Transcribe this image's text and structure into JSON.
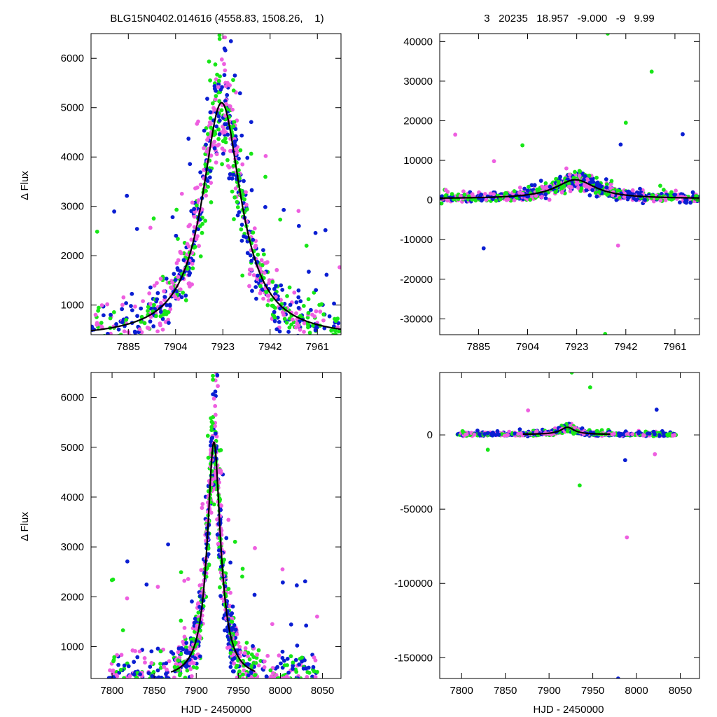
{
  "header": {
    "left_title": "BLG15N0402.014616 (4558.83, 1508.26,    1)",
    "right_title": "3   20235   18.957   -9.000   -9   9.99"
  },
  "colors": {
    "series_1": "#0a1ed2",
    "series_2": "#ee5fe0",
    "series_3": "#17e617",
    "model": "#000000"
  },
  "chart_data": [
    {
      "id": "top-left",
      "type": "scatter",
      "title": "",
      "xlabel": "",
      "ylabel": "Δ Flux",
      "xlim": [
        7870.0,
        7970.5
      ],
      "ylim": [
        400,
        6500
      ],
      "xticks": [
        7885,
        7904,
        7923,
        7942,
        7961
      ],
      "yticks": [
        1000,
        2000,
        3000,
        4000,
        5000,
        6000
      ],
      "grid": false,
      "model": {
        "peak_x": 7922.5,
        "peak_y": 5100,
        "baseline": 330,
        "width": 9.5
      }
    },
    {
      "id": "top-right",
      "type": "scatter",
      "title": "",
      "xlabel": "",
      "ylabel": "",
      "xlim": [
        7870.0,
        7970.5
      ],
      "ylim": [
        -34000,
        42000
      ],
      "xticks": [
        7885,
        7904,
        7923,
        7942,
        7961
      ],
      "yticks": [
        -30000,
        -20000,
        -10000,
        0,
        10000,
        20000,
        30000,
        40000
      ],
      "grid": false,
      "model": {
        "peak_x": 7922.5,
        "peak_y": 5100,
        "baseline": 330,
        "width": 9.5
      },
      "outliers": [
        {
          "x": 7876,
          "y": 16500,
          "series": "magenta"
        },
        {
          "x": 7891,
          "y": 9800,
          "series": "magenta"
        },
        {
          "x": 7902,
          "y": 13800,
          "series": "green"
        },
        {
          "x": 7935,
          "y": 42000,
          "series": "green"
        },
        {
          "x": 7942,
          "y": 19500,
          "series": "green"
        },
        {
          "x": 7952,
          "y": 32400,
          "series": "green"
        },
        {
          "x": 7964,
          "y": 16600,
          "series": "blue"
        },
        {
          "x": 7887,
          "y": -12200,
          "series": "blue"
        },
        {
          "x": 7939,
          "y": -11500,
          "series": "magenta"
        },
        {
          "x": 7934,
          "y": -33800,
          "series": "green"
        },
        {
          "x": 7940,
          "y": 14000,
          "series": "blue"
        }
      ]
    },
    {
      "id": "bottom-left",
      "type": "scatter",
      "title": "",
      "xlabel": "HJD - 2450000",
      "ylabel": "Δ Flux",
      "xlim": [
        7775,
        8072
      ],
      "ylim": [
        360,
        6500
      ],
      "xticks": [
        7800,
        7850,
        7900,
        7950,
        8000,
        8050
      ],
      "yticks": [
        1000,
        2000,
        3000,
        4000,
        5000,
        6000
      ],
      "grid": false,
      "model": {
        "peak_x": 7921,
        "peak_y": 5100,
        "baseline": 330,
        "width": 9.5
      }
    },
    {
      "id": "bottom-right",
      "type": "scatter",
      "title": "",
      "xlabel": "HJD - 2450000",
      "ylabel": "",
      "xlim": [
        7775,
        8072
      ],
      "ylim": [
        -164000,
        42000
      ],
      "xticks": [
        7800,
        7850,
        7900,
        7950,
        8000,
        8050
      ],
      "yticks": [
        -150000,
        -100000,
        -50000,
        0
      ],
      "grid": false,
      "model": {
        "peak_x": 7921,
        "peak_y": 5100,
        "baseline": 330,
        "width": 9.5
      },
      "outliers": [
        {
          "x": 7926,
          "y": 42000,
          "series": "green"
        },
        {
          "x": 7947,
          "y": 32000,
          "series": "green"
        },
        {
          "x": 7876,
          "y": 16500,
          "series": "magenta"
        },
        {
          "x": 8023,
          "y": 17000,
          "series": "blue"
        },
        {
          "x": 7987,
          "y": -17000,
          "series": "blue"
        },
        {
          "x": 7935,
          "y": -34000,
          "series": "green"
        },
        {
          "x": 7989,
          "y": -69000,
          "series": "magenta"
        },
        {
          "x": 7979,
          "y": -164000,
          "series": "blue"
        },
        {
          "x": 7830,
          "y": -10000,
          "series": "green"
        },
        {
          "x": 8021,
          "y": -13000,
          "series": "magenta"
        }
      ]
    }
  ]
}
